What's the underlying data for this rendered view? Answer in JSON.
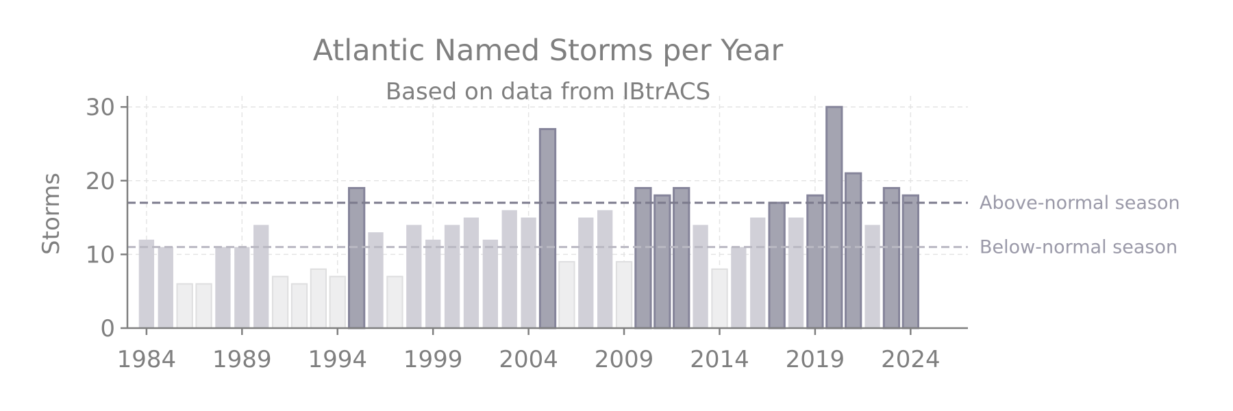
{
  "chart_data": {
    "type": "bar",
    "title": "Atlantic Named Storms per Year",
    "subtitle": "Based on data from IBtrACS",
    "xlabel": "",
    "ylabel": "Storms",
    "x": [
      1984,
      1985,
      1986,
      1987,
      1988,
      1989,
      1990,
      1991,
      1992,
      1993,
      1994,
      1995,
      1996,
      1997,
      1998,
      1999,
      2000,
      2001,
      2002,
      2003,
      2004,
      2005,
      2006,
      2007,
      2008,
      2009,
      2010,
      2011,
      2012,
      2013,
      2014,
      2015,
      2016,
      2017,
      2018,
      2019,
      2020,
      2021,
      2022,
      2023,
      2024
    ],
    "values": [
      12,
      11,
      6,
      6,
      11,
      11,
      14,
      7,
      6,
      8,
      7,
      19,
      13,
      7,
      14,
      12,
      14,
      15,
      12,
      16,
      15,
      27,
      9,
      15,
      16,
      9,
      19,
      18,
      19,
      14,
      8,
      11,
      15,
      17,
      15,
      18,
      30,
      21,
      14,
      19,
      18
    ],
    "xlim": [
      1983,
      2027
    ],
    "ylim": [
      0,
      31.5
    ],
    "xticks": [
      1984,
      1989,
      1994,
      1999,
      2004,
      2009,
      2014,
      2019,
      2024
    ],
    "yticks": [
      0,
      10,
      20,
      30
    ],
    "grid": true,
    "reference_lines": [
      {
        "label": "Above-normal season",
        "value": 17,
        "color": "#7b7a8c",
        "style": "dashed"
      },
      {
        "label": "Below-normal season",
        "value": 11,
        "color": "#b9b8c2",
        "style": "dashed"
      }
    ],
    "colors": {
      "above": "#a4a4b1",
      "above_edge": "#85849a",
      "normal": "#d1d0d8",
      "below": "#eeeeef",
      "axis": "#7f7f7f",
      "grid": "#e4e4e4"
    }
  }
}
